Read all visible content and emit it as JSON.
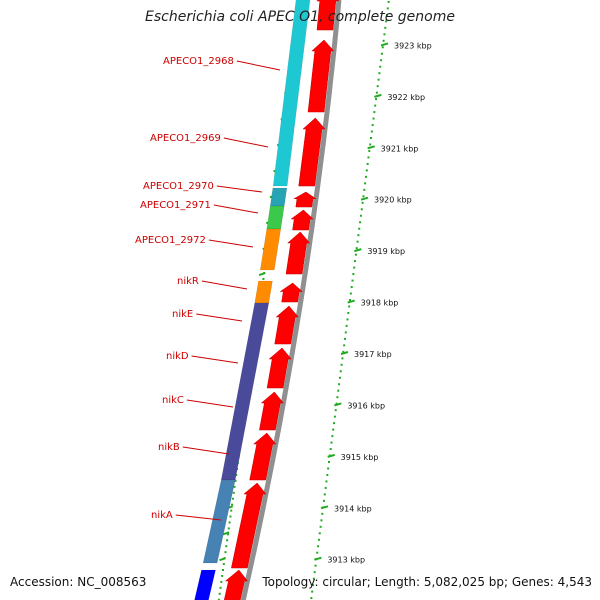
{
  "title": "Escherichia coli APEC O1, complete genome",
  "accession": "Accession: NC_008563",
  "summary": "Topology: circular; Length: 5,082,025 bp; Genes: 4,543",
  "colors": {
    "red_arrow": "#ff0000",
    "backbone": "#909090",
    "cyan": "#1ec8d2",
    "teal": "#27a4b4",
    "green": "#3cc84a",
    "orange": "#ff8c00",
    "navy": "#4a4a9a",
    "steel_blue": "#4682b4",
    "blue": "#0000ff",
    "ruler": "#22aa22",
    "label": "#cc0000"
  },
  "ruler_labels": [
    {
      "kbp": 3923,
      "text": "3923 kbp"
    },
    {
      "kbp": 3922,
      "text": "3922 kbp"
    },
    {
      "kbp": 3921,
      "text": "3921 kbp"
    },
    {
      "kbp": 3920,
      "text": "3920 kbp"
    },
    {
      "kbp": 3919,
      "text": "3919 kbp"
    },
    {
      "kbp": 3918,
      "text": "3918 kbp"
    },
    {
      "kbp": 3917,
      "text": "3917 kbp"
    },
    {
      "kbp": 3916,
      "text": "3916 kbp"
    },
    {
      "kbp": 3915,
      "text": "3915 kbp"
    },
    {
      "kbp": 3914,
      "text": "3914 kbp"
    },
    {
      "kbp": 3913,
      "text": "3913 kbp"
    }
  ],
  "genes": [
    {
      "label": "APECO1_2968",
      "color": "cyan"
    },
    {
      "label": "APECO1_2969",
      "color": "cyan"
    },
    {
      "label": "APECO1_2970",
      "color": "teal"
    },
    {
      "label": "APECO1_2971",
      "color": "green"
    },
    {
      "label": "APECO1_2972",
      "color": "orange"
    },
    {
      "label": "nikR",
      "color": "orange"
    },
    {
      "label": "nikE",
      "color": "navy"
    },
    {
      "label": "nikD",
      "color": "navy"
    },
    {
      "label": "nikC",
      "color": "navy"
    },
    {
      "label": "nikB",
      "color": "navy"
    },
    {
      "label": "nikA",
      "color": "steel_blue"
    }
  ]
}
